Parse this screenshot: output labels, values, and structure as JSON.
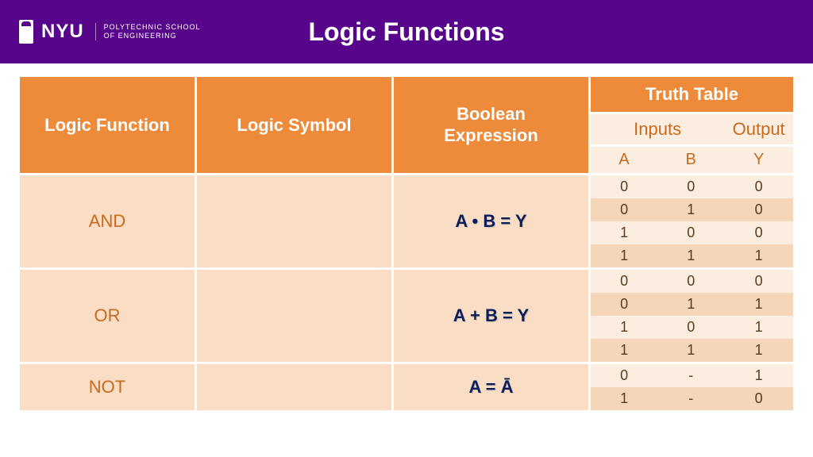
{
  "header": {
    "brand": "NYU",
    "school_line1": "POLYTECHNIC SCHOOL",
    "school_line2": "OF ENGINEERING",
    "title": "Logic Functions",
    "bg_color": "#57068c"
  },
  "table": {
    "columns": {
      "logic_function": "Logic Function",
      "logic_symbol": "Logic Symbol",
      "boolean_expression": "Boolean\nExpression",
      "truth_table": "Truth Table",
      "inputs": "Inputs",
      "output": "Output",
      "A": "A",
      "B": "B",
      "Y": "Y"
    },
    "header_bg": "#ed8b3b",
    "body_bg": "#f9ddc4",
    "body_text_color": "#c86a1e",
    "expr_color": "#0a1e5e",
    "tt_light": "#fbeee1",
    "tt_dark": "#f6d6b8",
    "rows": [
      {
        "name": "AND",
        "expression": "A • B = Y",
        "truth": [
          {
            "A": "0",
            "B": "0",
            "Y": "0"
          },
          {
            "A": "0",
            "B": "1",
            "Y": "0"
          },
          {
            "A": "1",
            "B": "0",
            "Y": "0"
          },
          {
            "A": "1",
            "B": "1",
            "Y": "1"
          }
        ]
      },
      {
        "name": "OR",
        "expression": "A + B = Y",
        "truth": [
          {
            "A": "0",
            "B": "0",
            "Y": "0"
          },
          {
            "A": "0",
            "B": "1",
            "Y": "1"
          },
          {
            "A": "1",
            "B": "0",
            "Y": "1"
          },
          {
            "A": "1",
            "B": "1",
            "Y": "1"
          }
        ]
      },
      {
        "name": "NOT",
        "expression": "A = Ā",
        "truth": [
          {
            "A": "0",
            "B": "-",
            "Y": "1"
          },
          {
            "A": "1",
            "B": "-",
            "Y": "0"
          }
        ]
      }
    ]
  }
}
